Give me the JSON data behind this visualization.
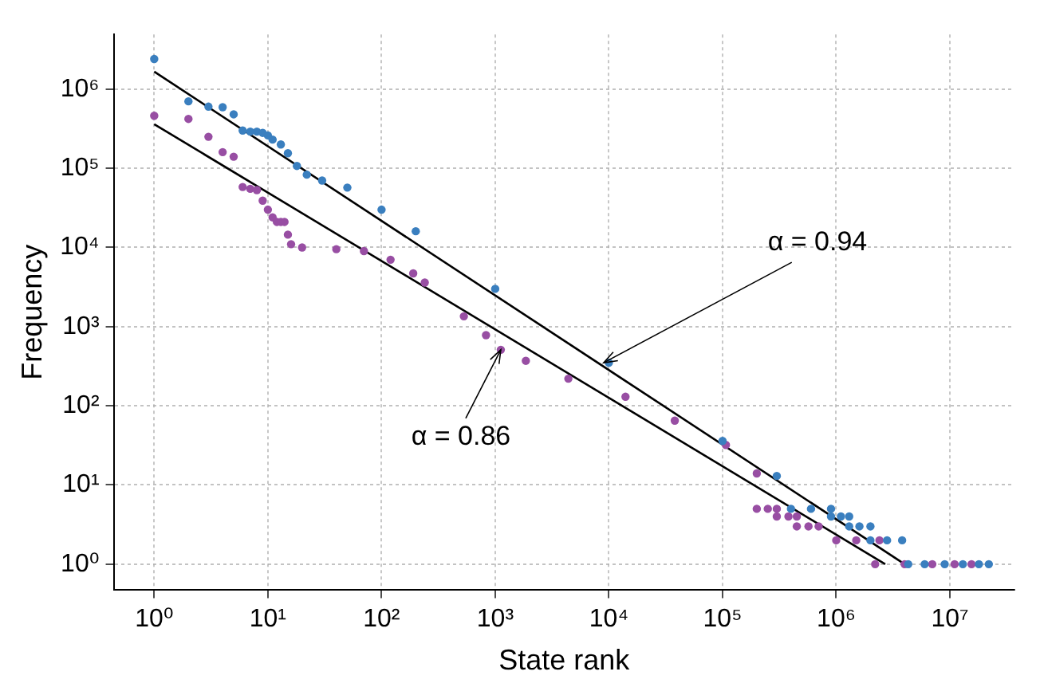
{
  "chart_data": {
    "type": "scatter",
    "xlabel": "State rank",
    "ylabel": "Frequency",
    "log": "xy",
    "grid": true,
    "marker": "circle",
    "xlim": [
      0.44,
      37000000
    ],
    "ylim": [
      0.47,
      4900000
    ],
    "xticks": [
      {
        "value": 1,
        "label": "10⁰"
      },
      {
        "value": 10,
        "label": "10¹"
      },
      {
        "value": 100,
        "label": "10²"
      },
      {
        "value": 1000,
        "label": "10³"
      },
      {
        "value": 10000,
        "label": "10⁴"
      },
      {
        "value": 100000,
        "label": "10⁵"
      },
      {
        "value": 1000000,
        "label": "10⁶"
      },
      {
        "value": 10000000,
        "label": "10⁷"
      }
    ],
    "yticks": [
      {
        "value": 1,
        "label": "10⁰"
      },
      {
        "value": 10,
        "label": "10¹"
      },
      {
        "value": 100,
        "label": "10²"
      },
      {
        "value": 1000,
        "label": "10³"
      },
      {
        "value": 10000,
        "label": "10⁴"
      },
      {
        "value": 100000,
        "label": "10⁵"
      },
      {
        "value": 1000000,
        "label": "10⁶"
      }
    ],
    "series": [
      {
        "type": "scatter",
        "color": "#3a7fbf",
        "x": [
          1,
          2,
          3,
          4,
          5,
          6,
          7,
          8,
          9,
          10,
          11,
          13,
          15,
          18,
          22,
          30,
          50,
          100,
          200,
          1000,
          10000,
          100000,
          300000,
          400000,
          600000,
          900000,
          900000,
          1100000,
          1300000,
          1300000,
          1600000,
          2000000,
          2000000,
          2800000,
          3800000,
          4300000,
          6000000,
          9000000,
          13000000,
          18000000,
          22000000
        ],
        "values": [
          2400000,
          700000,
          600000,
          590000,
          480000,
          300000,
          290000,
          290000,
          280000,
          260000,
          230000,
          200000,
          155000,
          107000,
          83000,
          70000,
          57000,
          30000,
          16000,
          3000,
          350,
          36,
          13,
          5,
          5,
          5,
          4,
          4,
          4,
          3,
          3,
          3,
          2,
          2,
          2,
          1,
          1,
          1,
          1,
          1,
          1
        ]
      },
      {
        "type": "scatter",
        "color": "#984ea3",
        "x": [
          1,
          2,
          3,
          4,
          5,
          6,
          7,
          8,
          9,
          10,
          11,
          12,
          13,
          14,
          15,
          16,
          20,
          40,
          70,
          120,
          190,
          240,
          530,
          830,
          1120,
          1860,
          4400,
          14000,
          38000,
          107000,
          200000,
          200000,
          250000,
          300000,
          300000,
          380000,
          450000,
          450000,
          570000,
          700000,
          1000000,
          1500000,
          2400000,
          2200000,
          4000000,
          7000000,
          11000000,
          15500000
        ],
        "values": [
          460000,
          420000,
          250000,
          160000,
          140000,
          58000,
          55000,
          53000,
          39000,
          30000,
          24000,
          21000,
          21000,
          21000,
          14500,
          11000,
          10000,
          9500,
          9000,
          7000,
          4700,
          3600,
          1350,
          780,
          510,
          370,
          220,
          130,
          65,
          32,
          14,
          5,
          5,
          5,
          4,
          4,
          4,
          3,
          3,
          3,
          2,
          2,
          2,
          1,
          1,
          1,
          1,
          1
        ]
      },
      {
        "type": "line",
        "marker": "none",
        "color": "#000000",
        "x": [
          1,
          4000000
        ],
        "values": [
          1660000,
          1
        ]
      },
      {
        "type": "line",
        "marker": "none",
        "color": "#000000",
        "x": [
          1,
          2700000
        ],
        "values": [
          360000,
          1
        ]
      }
    ],
    "annotations": [
      {
        "text": "α = 0.94",
        "x": 9000,
        "y": 350
      },
      {
        "text": "α = 0.86",
        "x": 1120,
        "y": 510
      }
    ]
  }
}
